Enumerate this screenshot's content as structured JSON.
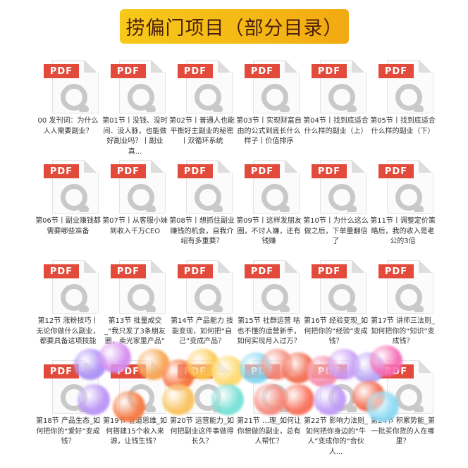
{
  "title": "捞偏门项目（部分目录）",
  "file_badge": "PDF",
  "items": [
    "00 发刊词：为什么人人需要副业？",
    "第01节丨没钱、没时间、没人脉，也能做好副业吗？丨副业真...",
    "第02节丨普通人也能平衡好主副业的秘密丨双循环系统",
    "第03节丨实现财富自由的公式到底长什么样子丨价值排序",
    "第04节丨找到底适合什么样的副业（上）",
    "第05节丨找到底适合什么样的副业（下）",
    "第06节丨副业赚钱都需要哪些准备",
    "第07节丨从客服小妹到收入千万CEO",
    "第08节丨想抓住副业赚钱的机会，自我介绍有多重要？",
    "第09节丨这样发朋友圈，不讨人嫌，还有钱赚",
    "第10节丨为什么这么做之后，下单量翻倍了",
    "第11节丨调整定价策略后，我的收入是老公的3倍",
    "第12节 涨粉技巧丨无论你做什么副业，都要具备这项技能",
    "第13节 批量成交_“我只发了3条朋友圈，卖光家里产品”",
    "第14节 产品能力 技能变现，如何把“自己”变成产品？",
    "第15节 社群运营 啥也不懂的运营新手，如何实现月入过万？",
    "第16节 经验变现_如何把你的“经验”变成钱？",
    "第17节 讲师三法则_如何把你的“知识”变成钱？",
    "第18节 产品生态_如何把你的“爱好”变成钱？",
    "第19节 管道思维_如何搭建15个收入来源，让钱生钱？",
    "第20节 运营能力_如何把副业这件事做得长久？",
    "第21节 …理_如何让你想做的副业，总有人帮忙？",
    "第22节 影响力法则_如何把你身边的“牛人”变成你的“合伙人...",
    "第24节 积累势能_第一批买你货的人在哪里？"
  ],
  "colors": {
    "title_bg": "#f5bf17",
    "badge": "#e24b3b",
    "title_text": "#4a1f0c"
  }
}
